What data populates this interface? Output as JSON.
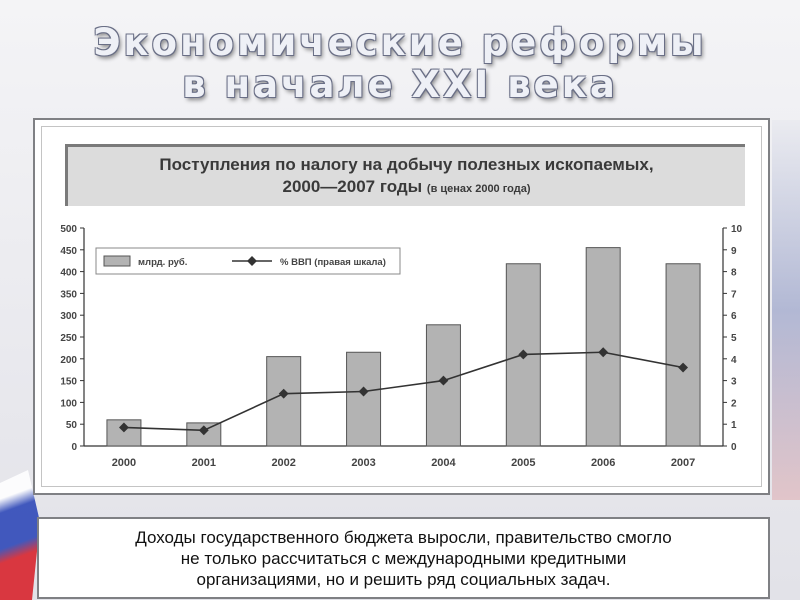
{
  "slide": {
    "title_line1": "Экономические реформы",
    "title_line2": "в начале XXI века",
    "caption": "Доходы государственного бюджета выросли, правительство смогло\nне только рассчитаться с международными кредитными\nорганизациями, но и решить ряд социальных задач."
  },
  "chart_data": {
    "type": "bar",
    "title_line1": "Поступления по налогу на добычу полезных ископаемых,",
    "title_line2": "2000—2007 годы",
    "title_note": "(в ценах 2000 года)",
    "categories": [
      "2000",
      "2001",
      "2002",
      "2003",
      "2004",
      "2005",
      "2006",
      "2007"
    ],
    "series": [
      {
        "name": "млрд. руб.",
        "type": "bar",
        "axis": "left",
        "values": [
          60,
          53,
          205,
          215,
          278,
          418,
          455,
          418
        ],
        "color": "#b3b3b3"
      },
      {
        "name": "% ВВП (правая шкала)",
        "type": "line",
        "axis": "right",
        "values": [
          0.85,
          0.72,
          2.4,
          2.5,
          3.0,
          4.2,
          4.3,
          3.6
        ],
        "color": "#333333"
      }
    ],
    "y_left": {
      "min": 0,
      "max": 500,
      "ticks": [
        0,
        50,
        100,
        150,
        200,
        250,
        300,
        350,
        400,
        450,
        500
      ]
    },
    "y_right": {
      "min": 0,
      "max": 10,
      "ticks": [
        0,
        1,
        2,
        3,
        4,
        5,
        6,
        7,
        8,
        9,
        10
      ]
    },
    "grid": false,
    "legend_position": "top-left"
  }
}
